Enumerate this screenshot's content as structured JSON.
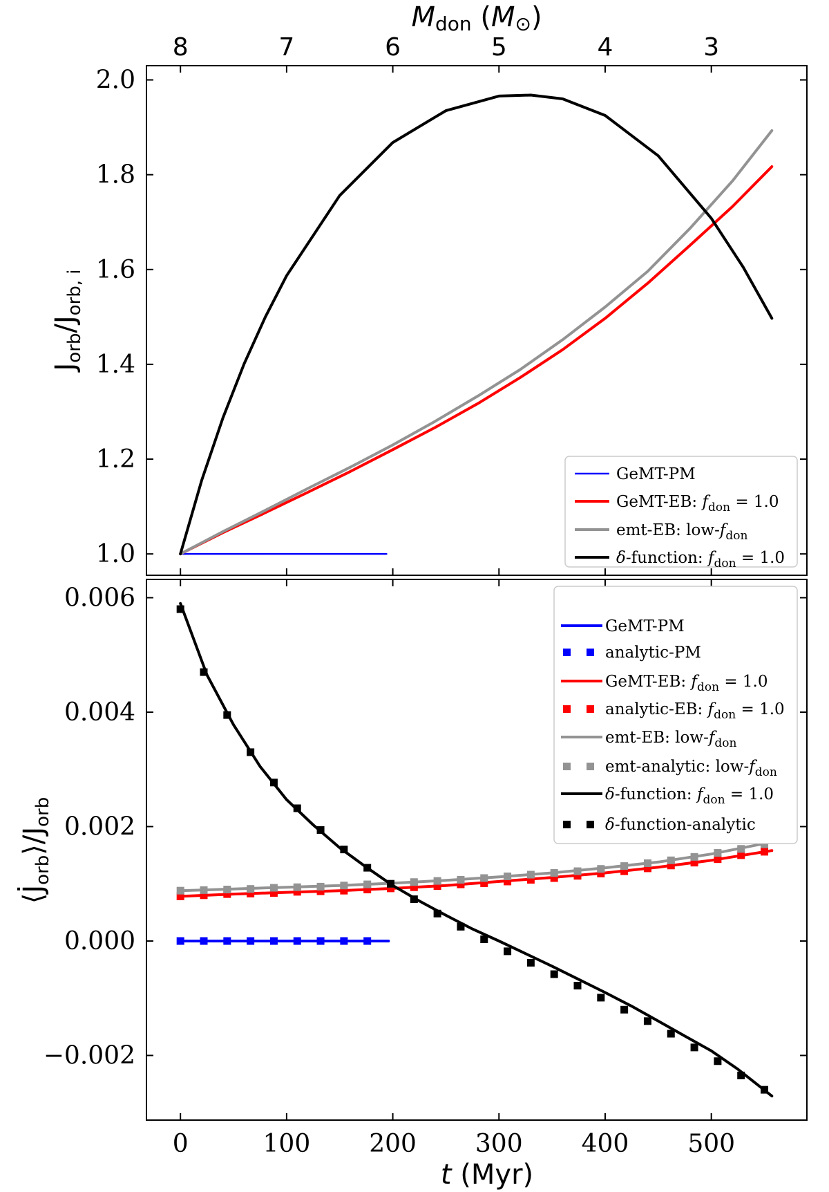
{
  "chart_data": [
    {
      "type": "line",
      "panel": "top",
      "ylabel": "J_orb/J_orb,i",
      "ylim": [
        0.955,
        2.03
      ],
      "xlim": [
        -32,
        590
      ],
      "yticks": [
        "1.0",
        "1.2",
        "1.4",
        "1.6",
        "1.8",
        "2.0"
      ],
      "ytick_values": [
        1.0,
        1.2,
        1.4,
        1.6,
        1.8,
        2.0
      ],
      "top_axis": {
        "label": "M_don (M⊙)",
        "ticks": [
          "8",
          "7",
          "6",
          "5",
          "4",
          "3"
        ],
        "tick_positions_t": [
          0,
          100,
          200,
          300,
          400,
          500
        ]
      },
      "legend_position": "lower-right",
      "series": [
        {
          "name": "GeMT-PM",
          "color": "#0000ff",
          "style": "line",
          "x": [
            0,
            194
          ],
          "y": [
            1.0,
            1.0
          ]
        },
        {
          "name": "GeMT-EB: f_don = 1.0",
          "color": "#ff0000",
          "style": "line",
          "x": [
            0,
            40,
            80,
            120,
            160,
            200,
            240,
            280,
            320,
            360,
            400,
            440,
            480,
            520,
            557
          ],
          "y": [
            1.0,
            1.045,
            1.087,
            1.13,
            1.174,
            1.22,
            1.267,
            1.317,
            1.372,
            1.431,
            1.497,
            1.571,
            1.651,
            1.733,
            1.817
          ]
        },
        {
          "name": "emt-EB: low-f_don",
          "color": "#939393",
          "style": "line",
          "x": [
            0,
            40,
            80,
            120,
            160,
            200,
            240,
            280,
            320,
            360,
            400,
            440,
            480,
            520,
            557
          ],
          "y": [
            1.0,
            1.047,
            1.092,
            1.138,
            1.183,
            1.23,
            1.28,
            1.333,
            1.389,
            1.452,
            1.521,
            1.596,
            1.687,
            1.787,
            1.893
          ]
        },
        {
          "name": "δ-function: f_don = 1.0",
          "color": "#000000",
          "style": "line",
          "x": [
            0,
            20,
            40,
            60,
            80,
            100,
            150,
            200,
            250,
            300,
            330,
            360,
            400,
            450,
            500,
            530,
            557
          ],
          "y": [
            1.0,
            1.155,
            1.287,
            1.401,
            1.5,
            1.587,
            1.756,
            1.868,
            1.935,
            1.966,
            1.968,
            1.96,
            1.925,
            1.84,
            1.708,
            1.605,
            1.497
          ]
        }
      ]
    },
    {
      "type": "line",
      "panel": "bottom",
      "ylabel": "⟨J̇_orb⟩/J_orb",
      "xlabel": "t (Myr)",
      "ylim": [
        -0.00313,
        0.00632
      ],
      "xlim": [
        -32,
        590
      ],
      "xticks": [
        "0",
        "100",
        "200",
        "300",
        "400",
        "500"
      ],
      "xtick_values": [
        0,
        100,
        200,
        300,
        400,
        500
      ],
      "yticks": [
        "0.006",
        "0.004",
        "0.002",
        "0.000",
        "−0.002"
      ],
      "ytick_values": [
        0.006,
        0.004,
        0.002,
        0.0,
        -0.002
      ],
      "legend_position": "upper-right",
      "series": [
        {
          "name": "GeMT-PM",
          "color": "#0000ff",
          "style": "line",
          "x": [
            0,
            196
          ],
          "y": [
            0.0,
            0.0
          ]
        },
        {
          "name": "analytic-PM",
          "color": "#0000ff",
          "style": "markers",
          "x": [
            0,
            22,
            44,
            66,
            88,
            110,
            132,
            154,
            176
          ],
          "y": [
            0,
            0,
            0,
            0,
            0,
            0,
            0,
            0,
            0
          ]
        },
        {
          "name": "GeMT-EB: f_don = 1.0",
          "color": "#ff0000",
          "style": "line",
          "x": [
            0,
            50,
            100,
            150,
            200,
            250,
            300,
            350,
            400,
            450,
            500,
            557
          ],
          "y": [
            0.00078,
            0.00082,
            0.00085,
            0.00088,
            0.00092,
            0.00097,
            0.00104,
            0.00111,
            0.00119,
            0.00129,
            0.00141,
            0.00158
          ]
        },
        {
          "name": "analytic-EB: f_don = 1.0",
          "color": "#ff0000",
          "style": "markers",
          "x": [
            0,
            22,
            44,
            66,
            88,
            110,
            132,
            154,
            176,
            198,
            220,
            242,
            264,
            286,
            308,
            330,
            352,
            374,
            396,
            418,
            440,
            462,
            484,
            506,
            528,
            550
          ],
          "y": [
            0.00078,
            0.0008,
            0.00082,
            0.00083,
            0.00084,
            0.00086,
            0.00087,
            0.00088,
            0.0009,
            0.00092,
            0.00094,
            0.00096,
            0.00099,
            0.00101,
            0.00104,
            0.00107,
            0.0011,
            0.00114,
            0.00118,
            0.00122,
            0.00127,
            0.00132,
            0.00137,
            0.00143,
            0.0015,
            0.00156
          ]
        },
        {
          "name": "emt-EB: low-f_don",
          "color": "#939393",
          "style": "line",
          "x": [
            0,
            50,
            100,
            150,
            200,
            250,
            300,
            350,
            400,
            450,
            500,
            557
          ],
          "y": [
            0.00088,
            0.00091,
            0.00094,
            0.00097,
            0.00101,
            0.00106,
            0.00112,
            0.00119,
            0.00128,
            0.00138,
            0.00152,
            0.00173
          ]
        },
        {
          "name": "emt-analytic: low-f_don",
          "color": "#939393",
          "style": "markers",
          "x": [
            0,
            22,
            44,
            66,
            88,
            110,
            132,
            154,
            176,
            198,
            220,
            242,
            264,
            286,
            308,
            330,
            352,
            374,
            396,
            418,
            440,
            462,
            484,
            506,
            528,
            550
          ],
          "y": [
            0.00088,
            0.00089,
            0.0009,
            0.00091,
            0.00093,
            0.00094,
            0.00095,
            0.00097,
            0.00099,
            0.001,
            0.00103,
            0.00105,
            0.00107,
            0.0011,
            0.00113,
            0.00116,
            0.00119,
            0.00122,
            0.00126,
            0.00131,
            0.00136,
            0.00141,
            0.00147,
            0.00154,
            0.00161,
            0.00169
          ]
        },
        {
          "name": "δ-function: f_don = 1.0",
          "color": "#000000",
          "style": "line",
          "x": [
            0,
            25,
            50,
            75,
            100,
            125,
            150,
            175,
            200,
            225,
            250,
            275,
            300,
            325,
            350,
            375,
            400,
            425,
            450,
            475,
            500,
            525,
            557
          ],
          "y": [
            0.0059,
            0.00465,
            0.00378,
            0.00305,
            0.00247,
            0.00203,
            0.00163,
            0.00129,
            0.00097,
            0.0007,
            0.00045,
            0.00021,
            -0.0,
            -0.00022,
            -0.00044,
            -0.00067,
            -0.0009,
            -0.00114,
            -0.0014,
            -0.00166,
            -0.00192,
            -0.00224,
            -0.00271
          ]
        },
        {
          "name": "δ-function-analytic",
          "color": "#000000",
          "style": "markers",
          "x": [
            0,
            22,
            44,
            66,
            88,
            110,
            132,
            154,
            176,
            198,
            220,
            242,
            264,
            286,
            308,
            330,
            352,
            374,
            396,
            418,
            440,
            462,
            484,
            506,
            528,
            550
          ],
          "y": [
            0.0058,
            0.0047,
            0.00395,
            0.0033,
            0.00277,
            0.00232,
            0.00194,
            0.0016,
            0.00128,
            0.001,
            0.00073,
            0.00048,
            0.00025,
            3e-05,
            -0.00018,
            -0.00038,
            -0.00058,
            -0.00078,
            -0.00099,
            -0.0012,
            -0.0014,
            -0.00162,
            -0.00186,
            -0.0021,
            -0.00235,
            -0.0026
          ]
        }
      ]
    }
  ]
}
